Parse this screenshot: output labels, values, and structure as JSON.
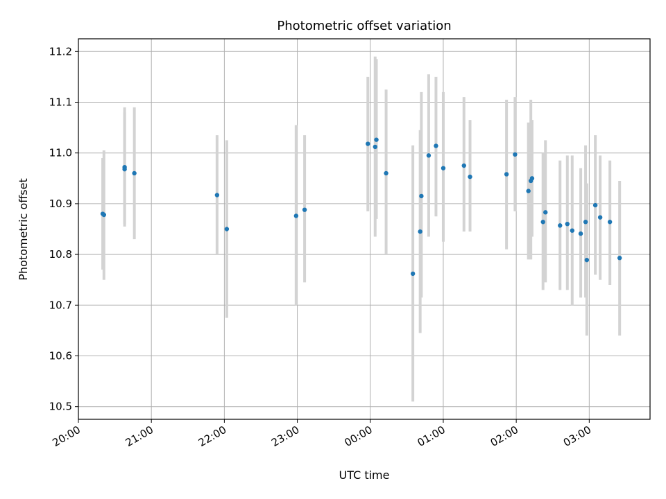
{
  "chart_data": {
    "type": "scatter",
    "title": "Photometric offset variation",
    "xlabel": "UTC time",
    "ylabel": "Photometric offset",
    "grid": true,
    "colors": {
      "points": "#1f77b4",
      "errorbars": "#d3d3d3",
      "grid": "#b0b0b0"
    },
    "x_ticks": [
      "20:00",
      "21:00",
      "22:00",
      "23:00",
      "00:00",
      "01:00",
      "02:00",
      "03:00"
    ],
    "y_ticks": [
      "10.5",
      "10.6",
      "10.7",
      "10.8",
      "10.9",
      "11.0",
      "11.1",
      "11.2"
    ],
    "xlim": [
      "20:00",
      "03:50"
    ],
    "ylim": [
      10.475,
      11.225
    ],
    "points": [
      {
        "x": "20:20",
        "y": 10.88,
        "low": 10.77,
        "high": 10.99
      },
      {
        "x": "20:21",
        "y": 10.878,
        "low": 10.75,
        "high": 11.005
      },
      {
        "x": "20:38",
        "y": 10.972,
        "low": 10.855,
        "high": 11.09
      },
      {
        "x": "20:38",
        "y": 10.968,
        "low": 10.86,
        "high": 11.08
      },
      {
        "x": "20:46",
        "y": 10.96,
        "low": 10.83,
        "high": 11.09
      },
      {
        "x": "21:54",
        "y": 10.917,
        "low": 10.8,
        "high": 11.035
      },
      {
        "x": "22:02",
        "y": 10.85,
        "low": 10.675,
        "high": 11.025
      },
      {
        "x": "22:59",
        "y": 10.876,
        "low": 10.7,
        "high": 11.055
      },
      {
        "x": "23:06",
        "y": 10.888,
        "low": 10.745,
        "high": 11.035
      },
      {
        "x": "23:58",
        "y": 11.018,
        "low": 10.885,
        "high": 11.15
      },
      {
        "x": "00:04",
        "y": 11.012,
        "low": 10.835,
        "high": 11.19
      },
      {
        "x": "00:05",
        "y": 11.026,
        "low": 10.87,
        "high": 11.185
      },
      {
        "x": "00:13",
        "y": 10.96,
        "low": 10.8,
        "high": 11.125
      },
      {
        "x": "00:35",
        "y": 10.762,
        "low": 10.51,
        "high": 11.015
      },
      {
        "x": "00:41",
        "y": 10.845,
        "low": 10.645,
        "high": 11.045
      },
      {
        "x": "00:42",
        "y": 10.915,
        "low": 10.715,
        "high": 11.12
      },
      {
        "x": "00:48",
        "y": 10.995,
        "low": 10.835,
        "high": 11.155
      },
      {
        "x": "00:54",
        "y": 11.014,
        "low": 10.875,
        "high": 11.15
      },
      {
        "x": "01:00",
        "y": 10.97,
        "low": 10.825,
        "high": 11.12
      },
      {
        "x": "01:17",
        "y": 10.975,
        "low": 10.845,
        "high": 11.11
      },
      {
        "x": "01:22",
        "y": 10.953,
        "low": 10.845,
        "high": 11.065
      },
      {
        "x": "01:52",
        "y": 10.958,
        "low": 10.81,
        "high": 11.105
      },
      {
        "x": "01:59",
        "y": 10.997,
        "low": 10.885,
        "high": 11.11
      },
      {
        "x": "02:10",
        "y": 10.925,
        "low": 10.79,
        "high": 11.06
      },
      {
        "x": "02:12",
        "y": 10.945,
        "low": 10.79,
        "high": 11.105
      },
      {
        "x": "02:13",
        "y": 10.95,
        "low": 10.835,
        "high": 11.065
      },
      {
        "x": "02:22",
        "y": 10.864,
        "low": 10.73,
        "high": 11.0
      },
      {
        "x": "02:24",
        "y": 10.883,
        "low": 10.745,
        "high": 11.025
      },
      {
        "x": "02:36",
        "y": 10.857,
        "low": 10.73,
        "high": 10.985
      },
      {
        "x": "02:42",
        "y": 10.86,
        "low": 10.73,
        "high": 10.995
      },
      {
        "x": "02:46",
        "y": 10.847,
        "low": 10.7,
        "high": 10.995
      },
      {
        "x": "02:53",
        "y": 10.841,
        "low": 10.715,
        "high": 10.97
      },
      {
        "x": "02:57",
        "y": 10.864,
        "low": 10.715,
        "high": 11.015
      },
      {
        "x": "02:58",
        "y": 10.789,
        "low": 10.64,
        "high": 10.94
      },
      {
        "x": "03:05",
        "y": 10.897,
        "low": 10.76,
        "high": 11.035
      },
      {
        "x": "03:09",
        "y": 10.873,
        "low": 10.75,
        "high": 10.995
      },
      {
        "x": "03:17",
        "y": 10.864,
        "low": 10.74,
        "high": 10.985
      },
      {
        "x": "03:25",
        "y": 10.793,
        "low": 10.64,
        "high": 10.945
      }
    ]
  }
}
